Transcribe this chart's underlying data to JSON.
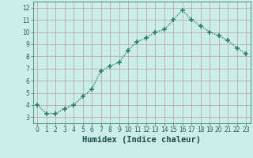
{
  "x": [
    0,
    1,
    2,
    3,
    4,
    5,
    6,
    7,
    8,
    9,
    10,
    11,
    12,
    13,
    14,
    15,
    16,
    17,
    18,
    19,
    20,
    21,
    22,
    23
  ],
  "y": [
    4.0,
    3.3,
    3.3,
    3.7,
    4.0,
    4.7,
    5.3,
    6.8,
    7.2,
    7.5,
    8.5,
    9.2,
    9.5,
    10.0,
    10.2,
    11.0,
    11.8,
    11.0,
    10.5,
    10.0,
    9.7,
    9.3,
    8.7,
    8.2
  ],
  "line_color": "#2e7d6e",
  "marker": "+",
  "marker_size": 4,
  "bg_color": "#cceee8",
  "grid_color": "#c0aaaa",
  "xlabel": "Humidex (Indice chaleur)",
  "xlim": [
    -0.5,
    23.5
  ],
  "ylim": [
    2.5,
    12.5
  ],
  "yticks": [
    3,
    4,
    5,
    6,
    7,
    8,
    9,
    10,
    11,
    12
  ],
  "xticks": [
    0,
    1,
    2,
    3,
    4,
    5,
    6,
    7,
    8,
    9,
    10,
    11,
    12,
    13,
    14,
    15,
    16,
    17,
    18,
    19,
    20,
    21,
    22,
    23
  ],
  "tick_fontsize": 5.5,
  "xlabel_fontsize": 7.5,
  "line_width": 1.0
}
